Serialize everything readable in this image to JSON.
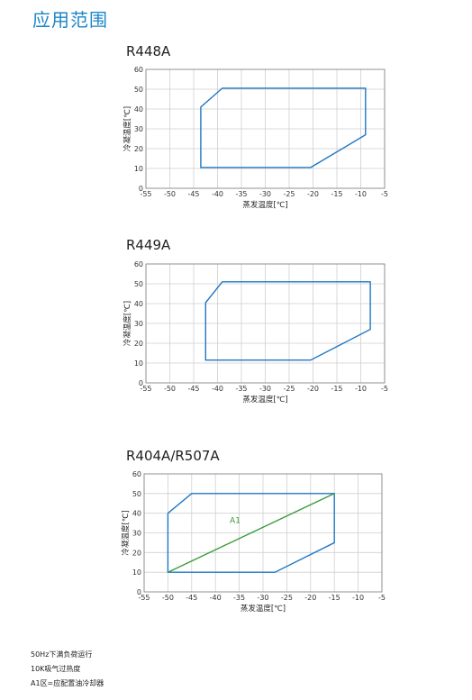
{
  "page": {
    "title": "应用范围"
  },
  "chart_data": [
    {
      "type": "line",
      "title": "R448A",
      "xlabel": "蒸发温度[℃]",
      "ylabel": "冷凝温度[℃]",
      "xlim": [
        -55,
        -5
      ],
      "ylim": [
        0,
        60
      ],
      "xticks": [
        -55,
        -50,
        -45,
        -40,
        -35,
        -30,
        -25,
        -20,
        -15,
        -10,
        -5
      ],
      "yticks": [
        0,
        10,
        20,
        30,
        40,
        50,
        60
      ],
      "grid": true,
      "series": [
        {
          "color": "#1f77c4",
          "closed": true,
          "points": [
            [
              -43.5,
              10.5
            ],
            [
              -20.5,
              10.5
            ],
            [
              -9,
              27
            ],
            [
              -9,
              50.5
            ],
            [
              -39,
              50.5
            ],
            [
              -43.5,
              41
            ]
          ]
        }
      ]
    },
    {
      "type": "line",
      "title": "R449A",
      "xlabel": "蒸发温度[℃]",
      "ylabel": "冷凝温度[℃]",
      "xlim": [
        -55,
        -5
      ],
      "ylim": [
        0,
        60
      ],
      "xticks": [
        -55,
        -50,
        -45,
        -40,
        -35,
        -30,
        -25,
        -20,
        -15,
        -10,
        -5
      ],
      "yticks": [
        0,
        10,
        20,
        30,
        40,
        50,
        60
      ],
      "grid": true,
      "series": [
        {
          "color": "#1f77c4",
          "closed": true,
          "points": [
            [
              -42.5,
              11.5
            ],
            [
              -20.5,
              11.5
            ],
            [
              -8,
              27
            ],
            [
              -8,
              51
            ],
            [
              -39,
              51
            ],
            [
              -42.5,
              40.5
            ]
          ]
        }
      ]
    },
    {
      "type": "line",
      "title": "R404A/R507A",
      "xlabel": "蒸发温度[℃]",
      "ylabel": "冷凝温度[℃]",
      "xlim": [
        -55,
        -5
      ],
      "ylim": [
        0,
        60
      ],
      "xticks": [
        -55,
        -50,
        -45,
        -40,
        -35,
        -30,
        -25,
        -20,
        -15,
        -10,
        -5
      ],
      "yticks": [
        0,
        10,
        20,
        30,
        40,
        50,
        60
      ],
      "grid": true,
      "annotations": [
        {
          "text": "A1",
          "x": -37,
          "y": 35,
          "color": "#3a9a3a"
        }
      ],
      "series": [
        {
          "color": "#1f77c4",
          "closed": true,
          "points": [
            [
              -50,
              10
            ],
            [
              -27.5,
              10
            ],
            [
              -15,
              25
            ],
            [
              -15,
              50
            ],
            [
              -45,
              50
            ],
            [
              -50,
              40
            ]
          ]
        },
        {
          "color": "#3a9a3a",
          "closed": false,
          "points": [
            [
              -50,
              10
            ],
            [
              -15,
              50
            ]
          ]
        }
      ]
    }
  ],
  "notes": [
    "50Hz下满负荷运行",
    "10K吸气过热度",
    "A1区=应配置油冷却器"
  ]
}
